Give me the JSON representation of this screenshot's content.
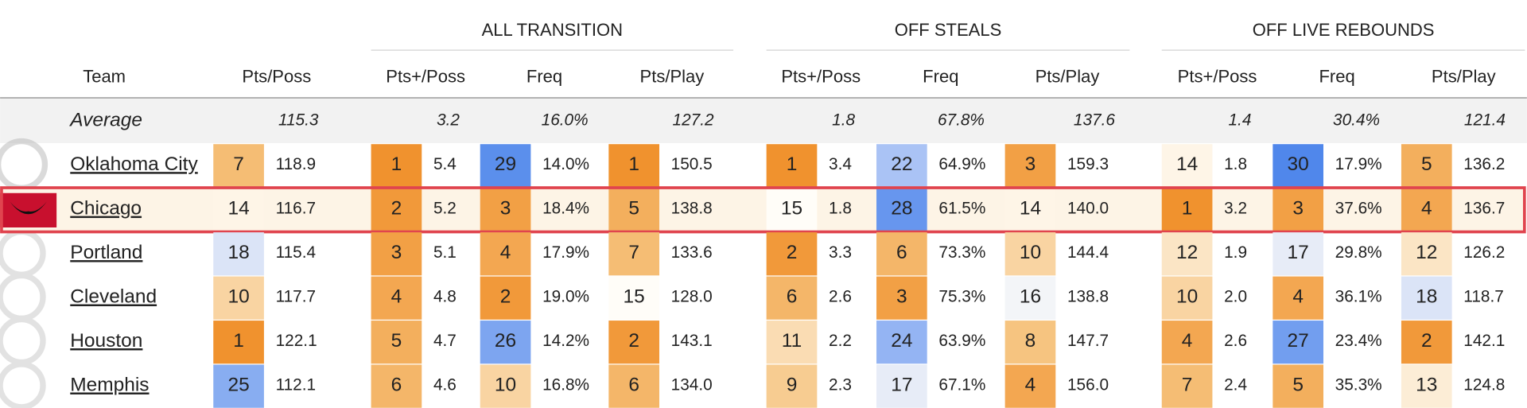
{
  "groups": [
    "ALL TRANSITION",
    "OFF STEALS",
    "OFF LIVE REBOUNDS"
  ],
  "columns": [
    "Team",
    "Pts/Poss",
    "Pts+/Poss",
    "Freq",
    "Pts/Play",
    "Pts+/Poss",
    "Freq",
    "Pts/Play",
    "Pts+/Poss",
    "Freq",
    "Pts/Play"
  ],
  "average": {
    "label": "Average",
    "values": [
      "115.3",
      "3.2",
      "16.0%",
      "127.2",
      "1.8",
      "67.8%",
      "137.6",
      "1.4",
      "30.4%",
      "121.4"
    ]
  },
  "highlighted_team": "Chicago",
  "rows": [
    {
      "team": "Oklahoma City",
      "ranks": [
        7,
        1,
        29,
        1,
        1,
        22,
        3,
        14,
        30,
        5
      ],
      "values": [
        "118.9",
        "5.4",
        "14.0%",
        "150.5",
        "3.4",
        "64.9%",
        "159.3",
        "1.8",
        "17.9%",
        "136.2"
      ]
    },
    {
      "team": "Chicago",
      "ranks": [
        14,
        2,
        3,
        5,
        15,
        28,
        14,
        1,
        3,
        4
      ],
      "values": [
        "116.7",
        "5.2",
        "18.4%",
        "138.8",
        "1.8",
        "61.5%",
        "140.0",
        "3.2",
        "37.6%",
        "136.7"
      ]
    },
    {
      "team": "Portland",
      "ranks": [
        18,
        3,
        4,
        7,
        2,
        6,
        10,
        12,
        17,
        12
      ],
      "values": [
        "115.4",
        "5.1",
        "17.9%",
        "133.6",
        "3.3",
        "73.3%",
        "144.4",
        "1.9",
        "29.8%",
        "126.2"
      ]
    },
    {
      "team": "Cleveland",
      "ranks": [
        10,
        4,
        2,
        15,
        6,
        3,
        16,
        10,
        4,
        18
      ],
      "values": [
        "117.7",
        "4.8",
        "19.0%",
        "128.0",
        "2.6",
        "75.3%",
        "138.8",
        "2.0",
        "36.1%",
        "118.7"
      ]
    },
    {
      "team": "Houston",
      "ranks": [
        1,
        5,
        26,
        2,
        11,
        24,
        8,
        4,
        27,
        2
      ],
      "values": [
        "122.1",
        "4.7",
        "14.2%",
        "143.1",
        "2.2",
        "63.9%",
        "147.7",
        "2.6",
        "23.4%",
        "142.1"
      ]
    },
    {
      "team": "Memphis",
      "ranks": [
        25,
        6,
        10,
        6,
        9,
        17,
        4,
        7,
        5,
        13
      ],
      "values": [
        "112.1",
        "4.6",
        "16.8%",
        "134.0",
        "2.3",
        "67.1%",
        "156.0",
        "2.4",
        "35.3%",
        "124.8"
      ]
    }
  ]
}
